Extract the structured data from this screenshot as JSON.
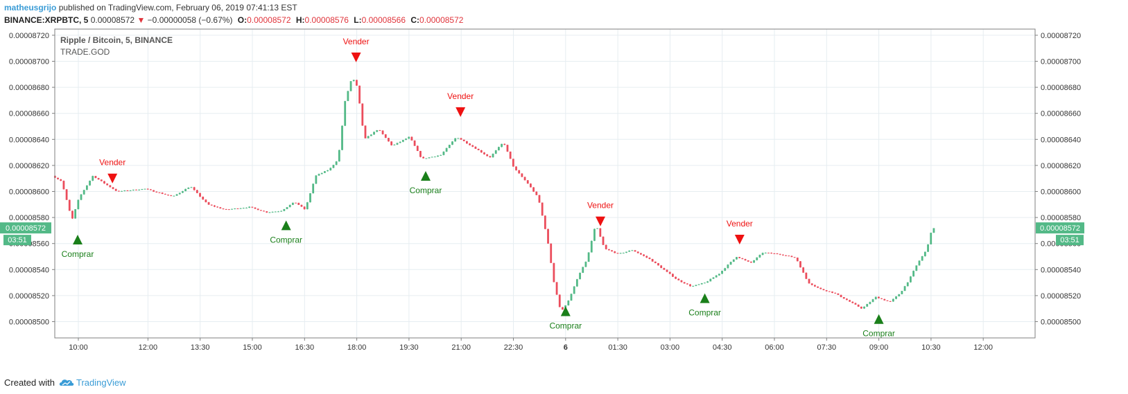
{
  "header": {
    "author": "matheusgrijo",
    "published_text": "published on TradingView.com, February 06, 2019 07:41:13 EST",
    "symbol": "BINANCE:XRPBTC, 5",
    "last": "0.00008572",
    "change_arrow": "▼",
    "change": "−0.00000058 (−0.67%)",
    "open_label": "O:",
    "open": "0.00008572",
    "high_label": "H:",
    "high": "0.00008576",
    "low_label": "L:",
    "low": "0.00008566",
    "close_label": "C:",
    "close": "0.00008572"
  },
  "legend": {
    "title": "Ripple / Bitcoin, 5, BINANCE",
    "script": "TRADE.GOD"
  },
  "price_tag": {
    "value": "0.00008572",
    "countdown": "03:51"
  },
  "footer": {
    "created_with": "Created with",
    "brand": "TradingView",
    "logo_icon": "tradingview-cloud-icon"
  },
  "colors": {
    "up": "#53b987",
    "down": "#eb4d5c",
    "buy": "#1a7f1a",
    "sell": "#ee1111",
    "tag": "#53b987"
  },
  "chart_data": {
    "type": "candlestick",
    "title": "Ripple / Bitcoin, 5, BINANCE",
    "ylim": [
      8.49e-05,
      8.73e-05
    ],
    "y_ticks": [
      "0.00008500",
      "0.00008520",
      "0.00008540",
      "0.00008560",
      "0.00008580",
      "0.00008600",
      "0.00008620",
      "0.00008640",
      "0.00008660",
      "0.00008680",
      "0.00008700",
      "0.00008720"
    ],
    "x_ticks": [
      {
        "label": "10:00",
        "t": 10.0
      },
      {
        "label": "12:00",
        "t": 12.0
      },
      {
        "label": "13:30",
        "t": 13.5
      },
      {
        "label": "15:00",
        "t": 15.0
      },
      {
        "label": "16:30",
        "t": 16.5
      },
      {
        "label": "18:00",
        "t": 18.0
      },
      {
        "label": "19:30",
        "t": 19.5
      },
      {
        "label": "21:00",
        "t": 21.0
      },
      {
        "label": "22:30",
        "t": 22.5
      },
      {
        "label": "6",
        "t": 24.0,
        "bold": true
      },
      {
        "label": "01:30",
        "t": 25.5
      },
      {
        "label": "03:00",
        "t": 27.0
      },
      {
        "label": "04:30",
        "t": 28.5
      },
      {
        "label": "06:00",
        "t": 30.0
      },
      {
        "label": "07:30",
        "t": 31.5
      },
      {
        "label": "09:00",
        "t": 33.0
      },
      {
        "label": "10:30",
        "t": 34.5
      },
      {
        "label": "12:00",
        "t": 36.0
      }
    ],
    "candle_path": [
      {
        "t": 9.33,
        "p": 8.612e-05
      },
      {
        "t": 9.6,
        "p": 8.608e-05
      },
      {
        "t": 9.9,
        "p": 8.578e-05
      },
      {
        "t": 10.1,
        "p": 8.595e-05
      },
      {
        "t": 10.5,
        "p": 8.612e-05
      },
      {
        "t": 10.9,
        "p": 8.605e-05
      },
      {
        "t": 11.2,
        "p": 8.6e-05
      },
      {
        "t": 12.0,
        "p": 8.602e-05
      },
      {
        "t": 12.8,
        "p": 8.596e-05
      },
      {
        "t": 13.3,
        "p": 8.604e-05
      },
      {
        "t": 13.8,
        "p": 8.59e-05
      },
      {
        "t": 14.3,
        "p": 8.586e-05
      },
      {
        "t": 15.0,
        "p": 8.588e-05
      },
      {
        "t": 15.5,
        "p": 8.584e-05
      },
      {
        "t": 15.9,
        "p": 8.585e-05
      },
      {
        "t": 16.3,
        "p": 8.592e-05
      },
      {
        "t": 16.6,
        "p": 8.586e-05
      },
      {
        "t": 16.9,
        "p": 8.612e-05
      },
      {
        "t": 17.3,
        "p": 8.617e-05
      },
      {
        "t": 17.55,
        "p": 8.625e-05
      },
      {
        "t": 17.75,
        "p": 8.67e-05
      },
      {
        "t": 17.95,
        "p": 8.688e-05
      },
      {
        "t": 18.1,
        "p": 8.68e-05
      },
      {
        "t": 18.3,
        "p": 8.64e-05
      },
      {
        "t": 18.7,
        "p": 8.648e-05
      },
      {
        "t": 19.1,
        "p": 8.635e-05
      },
      {
        "t": 19.6,
        "p": 8.642e-05
      },
      {
        "t": 19.95,
        "p": 8.625e-05
      },
      {
        "t": 20.5,
        "p": 8.628e-05
      },
      {
        "t": 20.95,
        "p": 8.642e-05
      },
      {
        "t": 21.5,
        "p": 8.633e-05
      },
      {
        "t": 21.9,
        "p": 8.626e-05
      },
      {
        "t": 22.3,
        "p": 8.638e-05
      },
      {
        "t": 22.6,
        "p": 8.618e-05
      },
      {
        "t": 23.0,
        "p": 8.606e-05
      },
      {
        "t": 23.3,
        "p": 8.595e-05
      },
      {
        "t": 23.55,
        "p": 8.565e-05
      },
      {
        "t": 23.75,
        "p": 8.53e-05
      },
      {
        "t": 23.95,
        "p": 8.507e-05
      },
      {
        "t": 24.2,
        "p": 8.518e-05
      },
      {
        "t": 24.45,
        "p": 8.535e-05
      },
      {
        "t": 24.7,
        "p": 8.548e-05
      },
      {
        "t": 24.95,
        "p": 8.575e-05
      },
      {
        "t": 25.2,
        "p": 8.556e-05
      },
      {
        "t": 25.6,
        "p": 8.552e-05
      },
      {
        "t": 26.0,
        "p": 8.555e-05
      },
      {
        "t": 26.5,
        "p": 8.548e-05
      },
      {
        "t": 26.9,
        "p": 8.54e-05
      },
      {
        "t": 27.3,
        "p": 8.532e-05
      },
      {
        "t": 27.7,
        "p": 8.527e-05
      },
      {
        "t": 28.1,
        "p": 8.53e-05
      },
      {
        "t": 28.5,
        "p": 8.537e-05
      },
      {
        "t": 28.8,
        "p": 8.545e-05
      },
      {
        "t": 29.0,
        "p": 8.55e-05
      },
      {
        "t": 29.4,
        "p": 8.545e-05
      },
      {
        "t": 29.75,
        "p": 8.553e-05
      },
      {
        "t": 30.2,
        "p": 8.552e-05
      },
      {
        "t": 30.7,
        "p": 8.549e-05
      },
      {
        "t": 31.05,
        "p": 8.53e-05
      },
      {
        "t": 31.4,
        "p": 8.525e-05
      },
      {
        "t": 31.8,
        "p": 8.522e-05
      },
      {
        "t": 32.2,
        "p": 8.516e-05
      },
      {
        "t": 32.6,
        "p": 8.51e-05
      },
      {
        "t": 33.0,
        "p": 8.519e-05
      },
      {
        "t": 33.4,
        "p": 8.515e-05
      },
      {
        "t": 33.7,
        "p": 8.522e-05
      },
      {
        "t": 33.95,
        "p": 8.532e-05
      },
      {
        "t": 34.2,
        "p": 8.545e-05
      },
      {
        "t": 34.45,
        "p": 8.555e-05
      },
      {
        "t": 34.62,
        "p": 8.572e-05
      }
    ],
    "signals": [
      {
        "type": "buy",
        "label": "Comprar",
        "t": 9.98,
        "p": 8.563e-05
      },
      {
        "type": "sell",
        "label": "Vender",
        "t": 10.98,
        "p": 8.61e-05
      },
      {
        "type": "buy",
        "label": "Comprar",
        "t": 15.97,
        "p": 8.574e-05
      },
      {
        "type": "sell",
        "label": "Vender",
        "t": 17.98,
        "p": 8.703e-05
      },
      {
        "type": "buy",
        "label": "Comprar",
        "t": 19.98,
        "p": 8.612e-05
      },
      {
        "type": "sell",
        "label": "Vender",
        "t": 20.98,
        "p": 8.661e-05
      },
      {
        "type": "buy",
        "label": "Comprar",
        "t": 24.0,
        "p": 8.508e-05
      },
      {
        "type": "sell",
        "label": "Vender",
        "t": 25.0,
        "p": 8.577e-05
      },
      {
        "type": "buy",
        "label": "Comprar",
        "t": 28.0,
        "p": 8.518e-05
      },
      {
        "type": "sell",
        "label": "Vender",
        "t": 29.0,
        "p": 8.563e-05
      },
      {
        "type": "buy",
        "label": "Comprar",
        "t": 33.0,
        "p": 8.502e-05
      }
    ],
    "last_price": 8.572e-05,
    "grid": true
  }
}
